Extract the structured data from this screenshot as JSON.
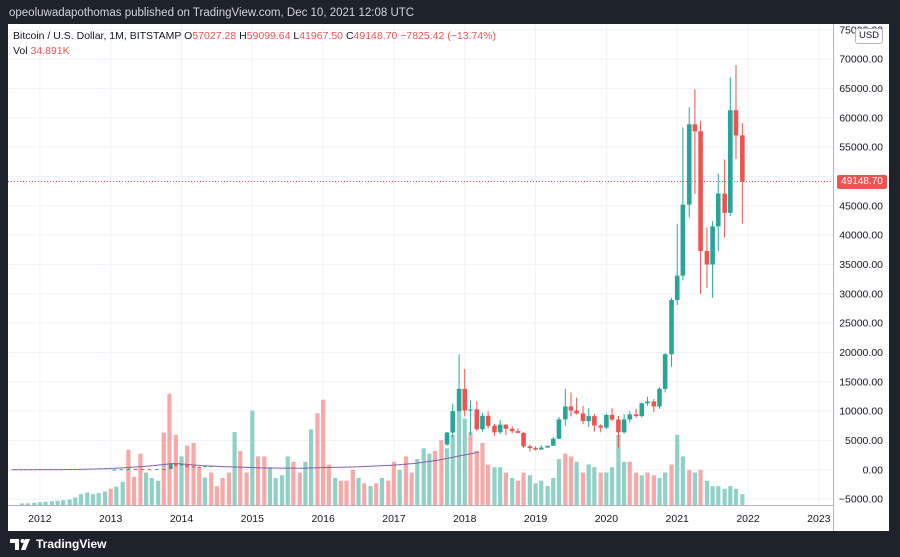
{
  "caption": "opeoluwadapothomas published on TradingView.com, Dec 10, 2021 12:08 UTC",
  "legend": {
    "symbol": "Bitcoin / U.S. Dollar, 1M, BITSTAMP",
    "o_label": "O",
    "o_value": "57027.28",
    "h_label": "H",
    "h_value": "59099.64",
    "l_label": "L",
    "l_value": "41967.50",
    "c_label": "C",
    "c_value": "49148.70",
    "change": "−7825.42 (−13.74%)",
    "vol_label": "Vol",
    "vol_value": "34.891K"
  },
  "currency": "USD",
  "last_price_label": "49148.70",
  "footer": {
    "brand": "TradingView"
  },
  "colors": {
    "up": "#26a69a",
    "down": "#ef5350",
    "vol_up": "#8fd1c7",
    "vol_down": "#f7a9a7",
    "ma": "#2962ff",
    "ma_down": "#ef5350"
  },
  "chart_data": {
    "type": "candlestick",
    "title": "Bitcoin / U.S. Dollar, 1M, BITSTAMP",
    "ylim": [
      -6000,
      76000
    ],
    "yticks": [
      -5000,
      0,
      5000,
      10000,
      15000,
      20000,
      25000,
      30000,
      35000,
      40000,
      45000,
      50000,
      55000,
      60000,
      65000,
      70000,
      75000
    ],
    "ytick_labels": [
      "−5000.00",
      "0.00",
      "5000.00",
      "10000.00",
      "15000.00",
      "20000.00",
      "25000.00",
      "30000.00",
      "35000.00",
      "40000.00",
      "45000.00",
      "50000.00",
      "55000.00",
      "60000.00",
      "65000.00",
      "70000.00",
      "75000.00"
    ],
    "xtick_labels": [
      "2012",
      "2013",
      "2014",
      "2015",
      "2016",
      "2017",
      "2018",
      "2019",
      "2020",
      "2021",
      "2022",
      "2023"
    ],
    "x_start_year": 2011.55,
    "last_price": 49148.7,
    "candles": [
      [
        2017.75,
        4300,
        6450,
        4100,
        6350
      ],
      [
        2017.83,
        6350,
        11300,
        5500,
        10000
      ],
      [
        2017.92,
        10000,
        19700,
        10000,
        13800
      ],
      [
        2018.0,
        13800,
        17200,
        9100,
        10100
      ],
      [
        2018.08,
        10100,
        11800,
        5900,
        10300
      ],
      [
        2018.17,
        10300,
        11700,
        6600,
        6900
      ],
      [
        2018.25,
        6900,
        9700,
        6500,
        9200
      ],
      [
        2018.33,
        9200,
        9950,
        7100,
        7500
      ],
      [
        2018.42,
        7500,
        7800,
        5800,
        6400
      ],
      [
        2018.5,
        6400,
        8500,
        6100,
        7700
      ],
      [
        2018.58,
        7700,
        7750,
        5900,
        7000
      ],
      [
        2018.67,
        7000,
        7400,
        6200,
        6600
      ],
      [
        2018.75,
        6600,
        7100,
        6200,
        6300
      ],
      [
        2018.83,
        6300,
        6500,
        3700,
        4000
      ],
      [
        2018.92,
        4000,
        4300,
        3100,
        3700
      ],
      [
        2019.0,
        3700,
        4000,
        3300,
        3450
      ],
      [
        2019.08,
        3450,
        4200,
        3400,
        3800
      ],
      [
        2019.17,
        3800,
        4100,
        3750,
        4100
      ],
      [
        2019.25,
        4100,
        5600,
        4050,
        5300
      ],
      [
        2019.33,
        5300,
        9000,
        5300,
        8600
      ],
      [
        2019.42,
        8600,
        13800,
        7500,
        10800
      ],
      [
        2019.5,
        10800,
        13200,
        9100,
        10100
      ],
      [
        2019.58,
        10100,
        12300,
        9400,
        9600
      ],
      [
        2019.67,
        9600,
        10900,
        7800,
        8300
      ],
      [
        2019.75,
        8300,
        10500,
        7300,
        9150
      ],
      [
        2019.83,
        9150,
        9500,
        6500,
        7550
      ],
      [
        2019.92,
        7550,
        7750,
        6400,
        7200
      ],
      [
        2020.0,
        7200,
        9600,
        6900,
        9350
      ],
      [
        2020.08,
        9350,
        10500,
        8400,
        8550
      ],
      [
        2020.17,
        8550,
        9200,
        3800,
        6400
      ],
      [
        2020.25,
        6400,
        9500,
        6150,
        8600
      ],
      [
        2020.33,
        8600,
        10000,
        8100,
        9450
      ],
      [
        2020.42,
        9450,
        10400,
        8900,
        9150
      ],
      [
        2020.5,
        9150,
        11450,
        8900,
        11350
      ],
      [
        2020.58,
        11350,
        12450,
        10950,
        11650
      ],
      [
        2020.67,
        11650,
        12050,
        9850,
        10800
      ],
      [
        2020.75,
        10800,
        14100,
        10400,
        13800
      ],
      [
        2020.83,
        13800,
        19900,
        13200,
        19700
      ],
      [
        2020.92,
        19700,
        29300,
        17600,
        28950
      ],
      [
        2021.0,
        28950,
        41950,
        28100,
        33100
      ],
      [
        2021.08,
        33100,
        58350,
        32300,
        45200
      ],
      [
        2021.17,
        45200,
        61800,
        43000,
        58900
      ],
      [
        2021.25,
        58900,
        64850,
        47000,
        57700
      ],
      [
        2021.33,
        57700,
        59500,
        30000,
        37300
      ],
      [
        2021.42,
        37300,
        41300,
        31000,
        35000
      ],
      [
        2021.5,
        35000,
        42400,
        29300,
        41500
      ],
      [
        2021.58,
        41500,
        50500,
        37300,
        47100
      ],
      [
        2021.67,
        47100,
        52900,
        39600,
        43800
      ],
      [
        2021.75,
        43800,
        66900,
        43300,
        61300
      ],
      [
        2021.83,
        61300,
        69000,
        53000,
        57000
      ],
      [
        2021.92,
        57027.28,
        59099.64,
        41967.5,
        49148.7
      ]
    ],
    "volume": [
      [
        2011.75,
        0.3
      ],
      [
        2011.83,
        0.3
      ],
      [
        2011.92,
        0.4
      ],
      [
        2012.0,
        0.5
      ],
      [
        2012.08,
        0.6
      ],
      [
        2012.17,
        0.7
      ],
      [
        2012.25,
        0.8
      ],
      [
        2012.33,
        0.9
      ],
      [
        2012.42,
        1.0
      ],
      [
        2012.5,
        1.4
      ],
      [
        2012.58,
        2.0
      ],
      [
        2012.67,
        2.3
      ],
      [
        2012.75,
        2.0
      ],
      [
        2012.83,
        2.2
      ],
      [
        2012.92,
        2.5
      ],
      [
        2013.0,
        3.0
      ],
      [
        2013.08,
        3.4
      ],
      [
        2013.17,
        4.3
      ],
      [
        2013.25,
        10.2
      ],
      [
        2013.33,
        5.2
      ],
      [
        2013.42,
        9.5
      ],
      [
        2013.5,
        6.0
      ],
      [
        2013.58,
        5.0
      ],
      [
        2013.67,
        4.5
      ],
      [
        2013.75,
        13.4
      ],
      [
        2013.83,
        20.6
      ],
      [
        2013.92,
        13.0
      ],
      [
        2014.0,
        9.0
      ],
      [
        2014.08,
        11.0
      ],
      [
        2014.17,
        11.5
      ],
      [
        2014.25,
        6.8
      ],
      [
        2014.33,
        5.1
      ],
      [
        2014.42,
        6.0
      ],
      [
        2014.5,
        3.5
      ],
      [
        2014.58,
        5.0
      ],
      [
        2014.67,
        6.0
      ],
      [
        2014.75,
        13.5
      ],
      [
        2014.83,
        10.0
      ],
      [
        2014.92,
        6.0
      ],
      [
        2015.0,
        17.5
      ],
      [
        2015.08,
        9.0
      ],
      [
        2015.17,
        9.0
      ],
      [
        2015.25,
        7.0
      ],
      [
        2015.33,
        5.0
      ],
      [
        2015.42,
        5.5
      ],
      [
        2015.5,
        9.0
      ],
      [
        2015.58,
        8.0
      ],
      [
        2015.67,
        6.0
      ],
      [
        2015.75,
        8.0
      ],
      [
        2015.83,
        14.0
      ],
      [
        2015.92,
        17.0
      ],
      [
        2016.0,
        19.5
      ],
      [
        2016.08,
        7.5
      ],
      [
        2016.17,
        5.0
      ],
      [
        2016.25,
        4.5
      ],
      [
        2016.33,
        4.5
      ],
      [
        2016.42,
        6.5
      ],
      [
        2016.5,
        5.0
      ],
      [
        2016.58,
        4.0
      ],
      [
        2016.67,
        3.5
      ],
      [
        2016.75,
        4.0
      ],
      [
        2016.83,
        5.0
      ],
      [
        2016.92,
        4.5
      ],
      [
        2017.0,
        8.0
      ],
      [
        2017.08,
        6.5
      ],
      [
        2017.17,
        9.0
      ],
      [
        2017.25,
        6.0
      ],
      [
        2017.33,
        8.5
      ],
      [
        2017.42,
        10.5
      ],
      [
        2017.5,
        9.5
      ],
      [
        2017.58,
        10.0
      ],
      [
        2017.67,
        12.0
      ],
      [
        2017.75,
        10.5
      ],
      [
        2017.83,
        13.0
      ],
      [
        2017.92,
        18.0
      ],
      [
        2018.0,
        16.0
      ],
      [
        2018.08,
        13.5
      ],
      [
        2018.17,
        10.0
      ],
      [
        2018.25,
        11.5
      ],
      [
        2018.33,
        7.5
      ],
      [
        2018.42,
        7.0
      ],
      [
        2018.5,
        7.0
      ],
      [
        2018.58,
        6.0
      ],
      [
        2018.67,
        5.0
      ],
      [
        2018.75,
        4.5
      ],
      [
        2018.83,
        6.0
      ],
      [
        2018.92,
        5.5
      ],
      [
        2019.0,
        4.0
      ],
      [
        2019.08,
        4.5
      ],
      [
        2019.17,
        3.5
      ],
      [
        2019.25,
        5.0
      ],
      [
        2019.33,
        8.5
      ],
      [
        2019.42,
        9.5
      ],
      [
        2019.5,
        9.0
      ],
      [
        2019.58,
        8.0
      ],
      [
        2019.67,
        6.0
      ],
      [
        2019.75,
        7.5
      ],
      [
        2019.83,
        7.0
      ],
      [
        2019.92,
        6.0
      ],
      [
        2020.0,
        6.0
      ],
      [
        2020.08,
        7.0
      ],
      [
        2020.17,
        13.0
      ],
      [
        2020.25,
        8.0
      ],
      [
        2020.33,
        8.0
      ],
      [
        2020.42,
        6.0
      ],
      [
        2020.5,
        5.5
      ],
      [
        2020.58,
        6.0
      ],
      [
        2020.67,
        5.5
      ],
      [
        2020.75,
        5.0
      ],
      [
        2020.83,
        6.0
      ],
      [
        2020.92,
        7.5
      ],
      [
        2021.0,
        13.0
      ],
      [
        2021.08,
        9.0
      ],
      [
        2021.17,
        6.5
      ],
      [
        2021.25,
        6.0
      ],
      [
        2021.33,
        6.5
      ],
      [
        2021.42,
        4.5
      ],
      [
        2021.5,
        3.5
      ],
      [
        2021.58,
        3.5
      ],
      [
        2021.67,
        3.0
      ],
      [
        2021.75,
        3.5
      ],
      [
        2021.83,
        3.0
      ],
      [
        2021.92,
        2.0
      ]
    ],
    "volume_dir": "uuuuuuuuuuuuuuuduuddduuudddudddudddduddudduuuudduudddudddudududdudduuudduuuudddduududduuuuuudduduuduuuuddudduuduudud",
    "ma_start_value": 0,
    "ma_points": [
      [
        2011.6,
        0
      ],
      [
        2012.5,
        50
      ],
      [
        2013.0,
        200
      ],
      [
        2013.5,
        600
      ],
      [
        2013.9,
        1100
      ],
      [
        2014.3,
        700
      ],
      [
        2014.7,
        500
      ],
      [
        2015.2,
        300
      ],
      [
        2015.7,
        280
      ],
      [
        2016.0,
        380
      ],
      [
        2016.5,
        520
      ],
      [
        2017.0,
        800
      ],
      [
        2017.3,
        1100
      ],
      [
        2017.6,
        1600
      ],
      [
        2017.9,
        2300
      ],
      [
        2018.2,
        3000
      ]
    ],
    "early_candles": [
      [
        2013.05,
        13,
        33,
        13,
        33
      ],
      [
        2013.15,
        33,
        100,
        33,
        95
      ],
      [
        2013.25,
        95,
        260,
        60,
        140
      ],
      [
        2013.35,
        140,
        140,
        80,
        125
      ],
      [
        2013.45,
        125,
        130,
        90,
        100
      ],
      [
        2013.55,
        100,
        110,
        70,
        95
      ],
      [
        2013.65,
        95,
        140,
        95,
        135
      ],
      [
        2013.75,
        135,
        150,
        120,
        140
      ],
      [
        2013.85,
        140,
        1160,
        140,
        1120
      ],
      [
        2013.92,
        1120,
        1180,
        580,
        750
      ],
      [
        2014.0,
        750,
        1000,
        750,
        950
      ],
      [
        2014.08,
        950,
        960,
        380,
        550
      ],
      [
        2014.17,
        550,
        700,
        450,
        480
      ],
      [
        2014.25,
        480,
        520,
        340,
        450
      ],
      [
        2014.33,
        450,
        630,
        440,
        620
      ],
      [
        2014.42,
        620,
        680,
        530,
        640
      ]
    ]
  }
}
